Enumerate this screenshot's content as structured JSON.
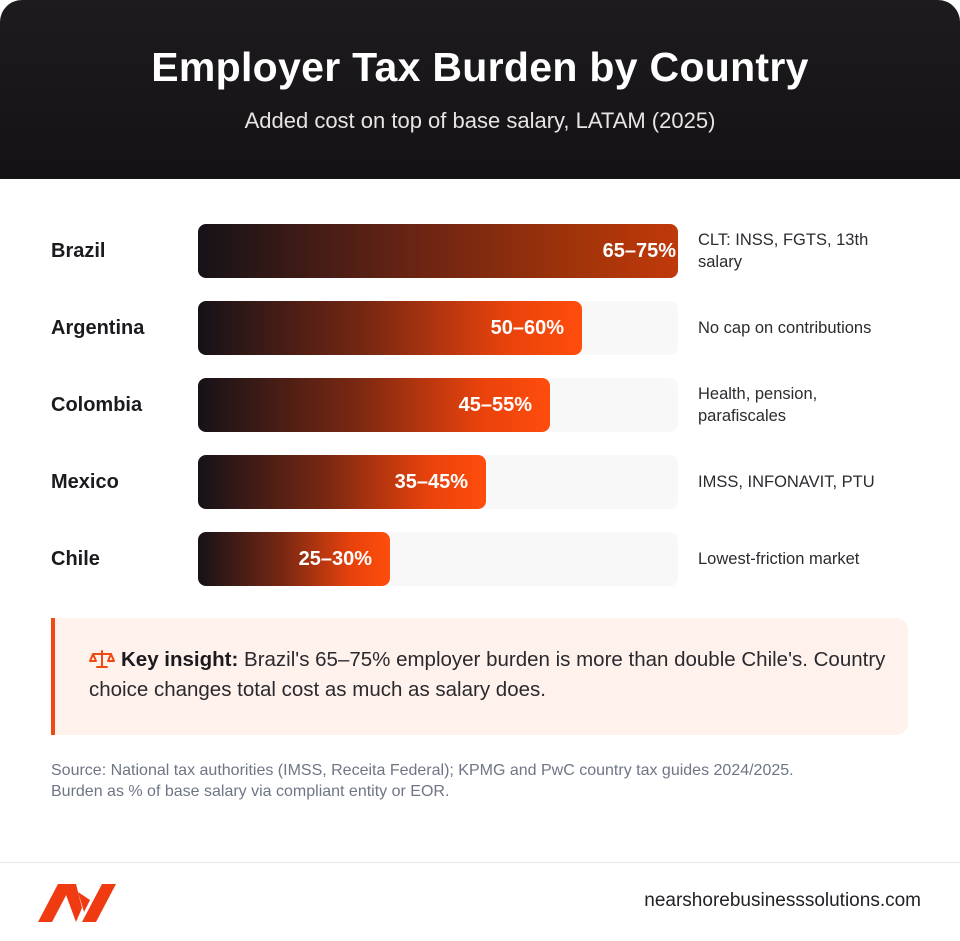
{
  "header": {
    "title": "Employer Tax Burden by Country",
    "subtitle": "Added cost on top of base salary, LATAM (2025)"
  },
  "chart_data": {
    "type": "bar",
    "orientation": "horizontal",
    "title": "Employer Tax Burden by Country",
    "subtitle": "Added cost on top of base salary, LATAM (2025)",
    "categories": [
      "Brazil",
      "Argentina",
      "Colombia",
      "Mexico",
      "Chile"
    ],
    "values": [
      75,
      60,
      55,
      45,
      30
    ],
    "ranges": [
      [
        65,
        75
      ],
      [
        50,
        60
      ],
      [
        45,
        55
      ],
      [
        35,
        45
      ],
      [
        25,
        30
      ]
    ],
    "value_labels": [
      "65–75%",
      "50–60%",
      "45–55%",
      "35–45%",
      "25–30%"
    ],
    "notes": [
      "CLT: INSS, FGTS, 13th salary",
      "No cap on contributions",
      "Health, pension, parafiscales",
      "IMSS, INFONAVIT, PTU",
      "Lowest-friction market"
    ],
    "xlim": [
      0,
      75
    ],
    "grid": false,
    "colors": {
      "bar_start": "#151218",
      "bar_end": "#ff4d0d",
      "track": "#f8f8f8"
    }
  },
  "insight": {
    "icon": "scale-icon",
    "label": "Key insight:",
    "text": " Brazil's 65–75% employer burden is more than double Chile's. Country choice changes total cost as much as salary does."
  },
  "source": {
    "line1": "Source: National tax authorities (IMSS, Receita Federal); KPMG and PwC country tax guides 2024/2025.",
    "line2": "Burden as % of base salary via compliant entity or EOR."
  },
  "footer": {
    "logo_icon": "brand-logo-icon",
    "website": "nearshorebusinesssolutions.com"
  },
  "colors": {
    "accent": "#f04a12",
    "header_bg": "#1a171b",
    "insight_bg": "#fff1ec"
  }
}
